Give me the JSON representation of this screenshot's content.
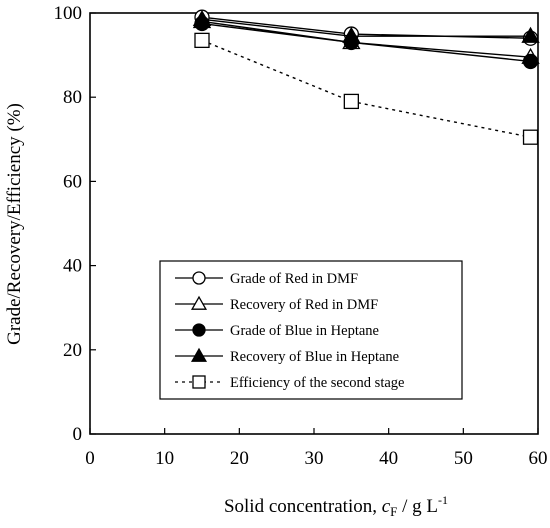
{
  "chart_data": {
    "type": "line",
    "xlabel": "Solid concentration, ",
    "xlabel_var": "c",
    "xlabel_sub": "F",
    "xlabel_unit": " / g L",
    "xlabel_sup": "-1",
    "ylabel": "Grade/Recovery/Efficiency (%)",
    "xlim": [
      0,
      60
    ],
    "ylim": [
      0,
      100
    ],
    "xticks": [
      "0",
      "10",
      "20",
      "30",
      "40",
      "50",
      "60"
    ],
    "yticks": [
      "0",
      "20",
      "40",
      "60",
      "80",
      "100"
    ],
    "grid": false,
    "legend_position": "lower-right",
    "series": [
      {
        "name": "Grade of Red in DMF",
        "marker": "circle-open",
        "line": "solid",
        "x": [
          15,
          35,
          59
        ],
        "y": [
          99.0,
          95.0,
          94.0
        ]
      },
      {
        "name": "Recovery of Red in DMF",
        "marker": "triangle-open",
        "line": "solid",
        "x": [
          15,
          35,
          59
        ],
        "y": [
          98.0,
          93.0,
          89.5
        ]
      },
      {
        "name": "Grade of Blue in Heptane",
        "marker": "circle-filled",
        "line": "solid",
        "x": [
          15,
          35,
          59
        ],
        "y": [
          97.5,
          93.0,
          88.5
        ]
      },
      {
        "name": "Recovery of Blue in Heptane",
        "marker": "triangle-filled",
        "line": "solid",
        "x": [
          15,
          35,
          59
        ],
        "y": [
          98.5,
          94.5,
          94.5
        ]
      },
      {
        "name": "Efficiency of the second stage",
        "marker": "square-open",
        "line": "dotted",
        "x": [
          15,
          35,
          59
        ],
        "y": [
          93.5,
          79.0,
          70.5
        ]
      }
    ]
  }
}
